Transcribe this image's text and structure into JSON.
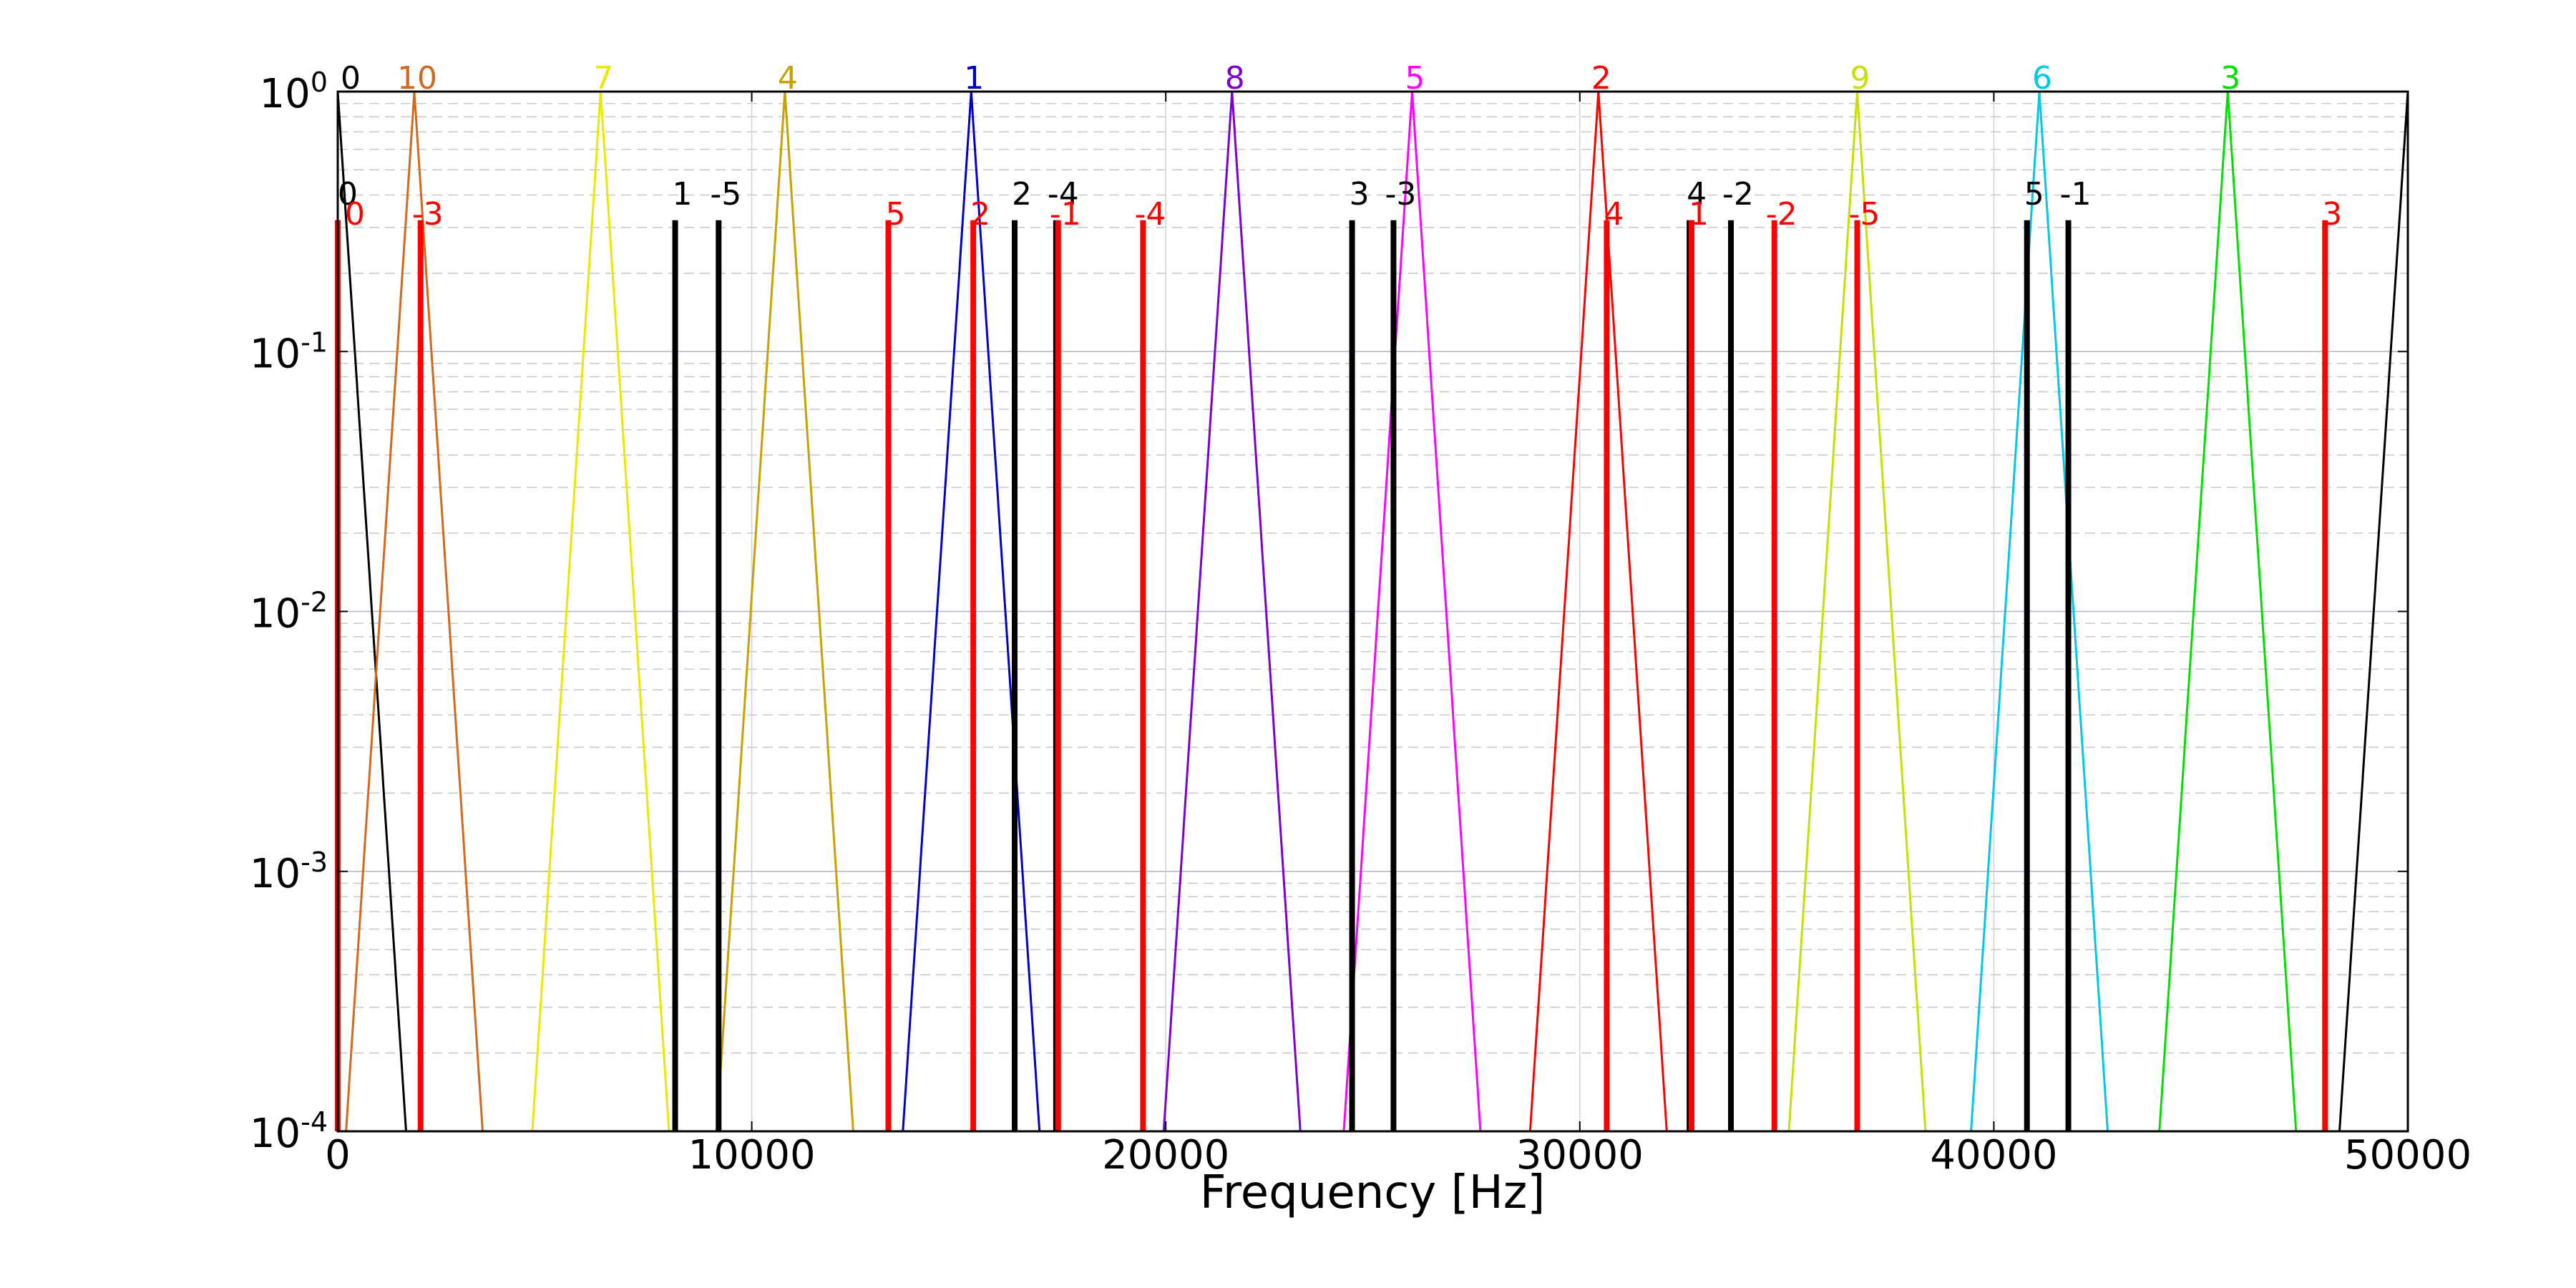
{
  "chart_data": {
    "type": "line",
    "title": "",
    "xlabel": "Frequency [Hz]",
    "ylabel": "",
    "xlim": [
      0,
      50000
    ],
    "ylim": [
      0.0001,
      1
    ],
    "yscale": "log",
    "grid": "y major and minor",
    "x_ticks": [
      0,
      10000,
      20000,
      30000,
      40000,
      50000
    ],
    "x_tick_labels": [
      "0",
      "10000",
      "20000",
      "30000",
      "40000",
      "50000"
    ],
    "y_ticks": [
      0.0001,
      0.001,
      0.01,
      0.1,
      1
    ],
    "y_tick_labels": [
      {
        "base": "10",
        "exp": "-4"
      },
      {
        "base": "10",
        "exp": "-3"
      },
      {
        "base": "10",
        "exp": "-2"
      },
      {
        "base": "10",
        "exp": "-1"
      },
      {
        "base": "10",
        "exp": "0"
      }
    ],
    "curves": [
      {
        "label": "0",
        "center": 0,
        "color": "#000000"
      },
      {
        "label": "10",
        "center": 1850,
        "color": "#d2691e"
      },
      {
        "label": "7",
        "center": 6350,
        "color": "#e8e800"
      },
      {
        "label": "4",
        "center": 10800,
        "color": "#c8a000"
      },
      {
        "label": "1",
        "center": 15300,
        "color": "#0000cc"
      },
      {
        "label": "8",
        "center": 21600,
        "color": "#7b00d4"
      },
      {
        "label": "5",
        "center": 25950,
        "color": "#ff00ff"
      },
      {
        "label": "2",
        "center": 30450,
        "color": "#ff0000"
      },
      {
        "label": "9",
        "center": 36700,
        "color": "#c8e000"
      },
      {
        "label": "6",
        "center": 41100,
        "color": "#00c8e8"
      },
      {
        "label": "3",
        "center": 45650,
        "color": "#00e000"
      },
      {
        "label": "",
        "center": 50000,
        "color": "#000000"
      }
    ],
    "black_lines": {
      "color": "#000000",
      "items": [
        {
          "x": 0,
          "label": "0"
        },
        {
          "x": 8150,
          "label": "1"
        },
        {
          "x": 9200,
          "label": "-5"
        },
        {
          "x": 16350,
          "label": "2"
        },
        {
          "x": 17350,
          "label": "-4"
        },
        {
          "x": 24500,
          "label": "3"
        },
        {
          "x": 25500,
          "label": "-3"
        },
        {
          "x": 32650,
          "label": "4"
        },
        {
          "x": 33650,
          "label": "-2"
        },
        {
          "x": 40800,
          "label": "5"
        },
        {
          "x": 41800,
          "label": "-1"
        }
      ]
    },
    "red_lines": {
      "color": "#ff0000",
      "items": [
        {
          "x": 0,
          "label": "0"
        },
        {
          "x": 2000,
          "label": "-3"
        },
        {
          "x": 13300,
          "label": "5"
        },
        {
          "x": 15350,
          "label": "2"
        },
        {
          "x": 17400,
          "label": "-1"
        },
        {
          "x": 19450,
          "label": "-4"
        },
        {
          "x": 30650,
          "label": "4"
        },
        {
          "x": 32700,
          "label": "1"
        },
        {
          "x": 34700,
          "label": "-2"
        },
        {
          "x": 36700,
          "label": "-5"
        },
        {
          "x": 48000,
          "label": "3"
        }
      ]
    }
  }
}
